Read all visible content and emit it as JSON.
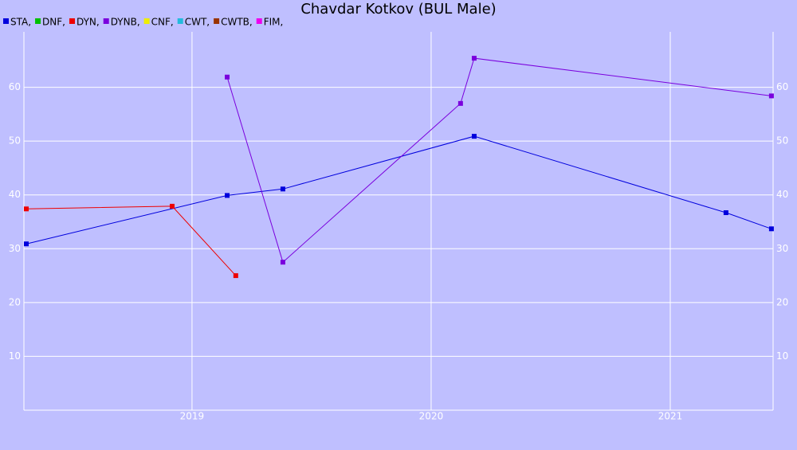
{
  "chart_data": {
    "type": "line",
    "title": "Chavdar Kotkov (BUL Male)",
    "xlim": [
      2018.297,
      2021.43
    ],
    "xticks": [
      2019,
      2020,
      2021
    ],
    "ylim": [
      0,
      70.3
    ],
    "yticks": [
      10,
      20,
      30,
      40,
      50,
      60
    ],
    "y2lim": [
      0,
      70.3
    ],
    "y2ticks": [
      10,
      20,
      30,
      40,
      50,
      60
    ],
    "grid": true,
    "legend": "top-left",
    "series": [
      {
        "name": "STA,",
        "color": "#0000dd",
        "x": [
          2018.307,
          2019.147,
          2019.38,
          2020.18,
          2021.233,
          2021.423
        ],
        "values": [
          30.9,
          39.9,
          41.1,
          50.9,
          36.7,
          33.7
        ]
      },
      {
        "name": "DNF,",
        "color": "#00c000",
        "x": [],
        "values": []
      },
      {
        "name": "DYN,",
        "color": "#ee0000",
        "x": [
          2018.307,
          2018.917,
          2019.183
        ],
        "values": [
          37.4,
          37.9,
          25.0
        ]
      },
      {
        "name": "DYNB,",
        "color": "#7a00dd",
        "x": [
          2019.147,
          2019.38,
          2020.123,
          2020.18,
          2021.423
        ],
        "values": [
          61.9,
          27.5,
          57.0,
          65.4,
          58.4
        ]
      },
      {
        "name": "CNF,",
        "color": "#eeee00",
        "x": [],
        "values": []
      },
      {
        "name": "CWT,",
        "color": "#22bbdd",
        "x": [],
        "values": []
      },
      {
        "name": "CWTB,",
        "color": "#993300",
        "x": [],
        "values": []
      },
      {
        "name": "FIM,",
        "color": "#ee00ee",
        "x": [],
        "values": []
      }
    ]
  }
}
